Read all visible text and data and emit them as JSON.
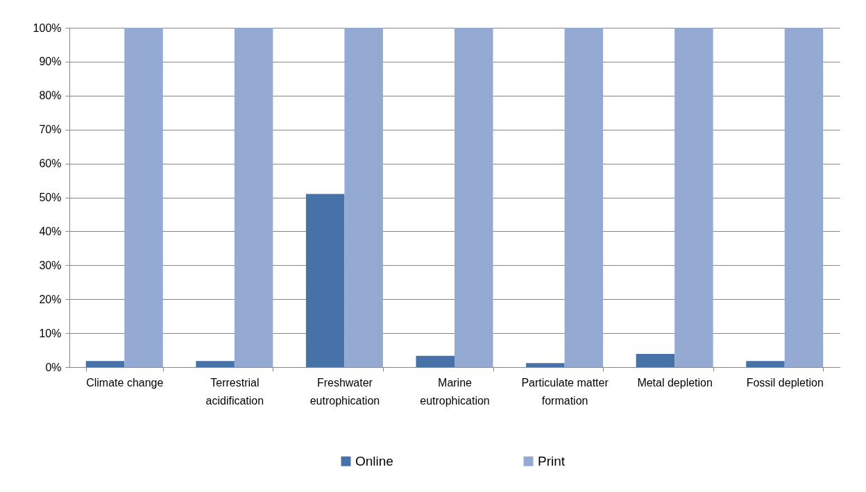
{
  "chart_data": {
    "type": "bar",
    "categories": [
      "Climate change",
      "Terrestrial acidification",
      "Freshwater eutrophication",
      "Marine eutrophication",
      "Particulate matter formation",
      "Metal depletion",
      "Fossil depletion"
    ],
    "series": [
      {
        "name": "Online",
        "color": "#4672a8",
        "values": [
          1.8,
          1.8,
          51,
          3.3,
          1.2,
          3.9,
          1.8
        ]
      },
      {
        "name": "Print",
        "color": "#94aad2",
        "values": [
          100,
          100,
          100,
          100,
          100,
          100,
          100
        ]
      }
    ],
    "ylim": [
      0,
      100
    ],
    "yticks": [
      {
        "value": 0,
        "label": "0%"
      },
      {
        "value": 10,
        "label": "10%"
      },
      {
        "value": 20,
        "label": "20%"
      },
      {
        "value": 30,
        "label": "30%"
      },
      {
        "value": 40,
        "label": "40%"
      },
      {
        "value": 50,
        "label": "50%"
      },
      {
        "value": 60,
        "label": "60%"
      },
      {
        "value": 70,
        "label": "70%"
      },
      {
        "value": 80,
        "label": "80%"
      },
      {
        "value": 90,
        "label": "90%"
      },
      {
        "value": 100,
        "label": "100%"
      }
    ],
    "grid": "y",
    "legend": "bottom"
  }
}
